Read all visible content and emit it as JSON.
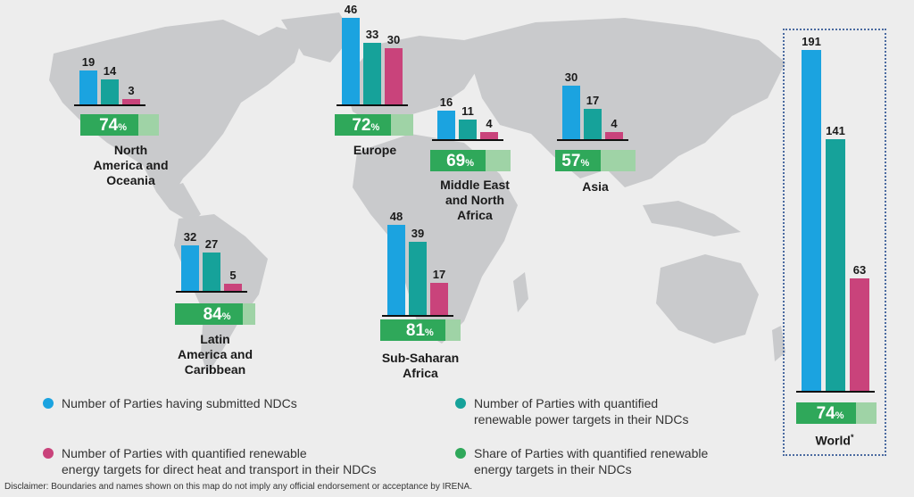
{
  "colors": {
    "submitted": "#1ba3e0",
    "power": "#16a29a",
    "heat_transport": "#c9437b",
    "share": "#2fa85a",
    "share_bg": "#9fd3a6",
    "map": "#c9cacc"
  },
  "chart_data": {
    "type": "bar",
    "title": "",
    "series": [
      {
        "name": "Number of Parties having submitted NDCs",
        "key": "submitted"
      },
      {
        "name": "Number of Parties with quantified renewable power targets in their NDCs",
        "key": "power"
      },
      {
        "name": "Number of Parties with quantified renewable energy targets for direct heat and transport in their NDCs",
        "key": "heat_transport"
      },
      {
        "name": "Share of Parties with quantified renewable energy targets in their NDCs",
        "key": "share"
      }
    ],
    "regions": [
      {
        "name": "North America and Oceania",
        "label": "North\nAmerica and\nOceania",
        "submitted": 19,
        "power": 14,
        "heat_transport": 3,
        "share": 74
      },
      {
        "name": "Europe",
        "label": "Europe",
        "submitted": 46,
        "power": 33,
        "heat_transport": 30,
        "share": 72
      },
      {
        "name": "Middle East and North Africa",
        "label": "Middle East\nand North\nAfrica",
        "submitted": 16,
        "power": 11,
        "heat_transport": 4,
        "share": 69
      },
      {
        "name": "Asia",
        "label": "Asia",
        "submitted": 30,
        "power": 17,
        "heat_transport": 4,
        "share": 57
      },
      {
        "name": "Latin America and Caribbean",
        "label": "Latin\nAmerica and\nCaribbean",
        "submitted": 32,
        "power": 27,
        "heat_transport": 5,
        "share": 84
      },
      {
        "name": "Sub-Saharan Africa",
        "label": "Sub-Saharan\nAfrica",
        "submitted": 48,
        "power": 39,
        "heat_transport": 17,
        "share": 81
      },
      {
        "name": "World",
        "label": "World",
        "sup": "*",
        "submitted": 191,
        "power": 141,
        "heat_transport": 63,
        "share": 74
      }
    ]
  },
  "legend": [
    {
      "text": "Number of Parties having submitted NDCs",
      "color_key": "submitted"
    },
    {
      "text": "Number of Parties with quantified\nrenewable power targets in their NDCs",
      "color_key": "power"
    },
    {
      "text": "Number of Parties with quantified renewable\nenergy targets for direct heat and transport in their NDCs",
      "color_key": "heat_transport"
    },
    {
      "text": "Share of Parties with quantified renewable\nenergy targets in their NDCs",
      "color_key": "share"
    }
  ],
  "disclaimer": "Disclaimer: Boundaries and names shown on this map do not imply any official endorsement or acceptance by IRENA.",
  "share_unit": "%"
}
